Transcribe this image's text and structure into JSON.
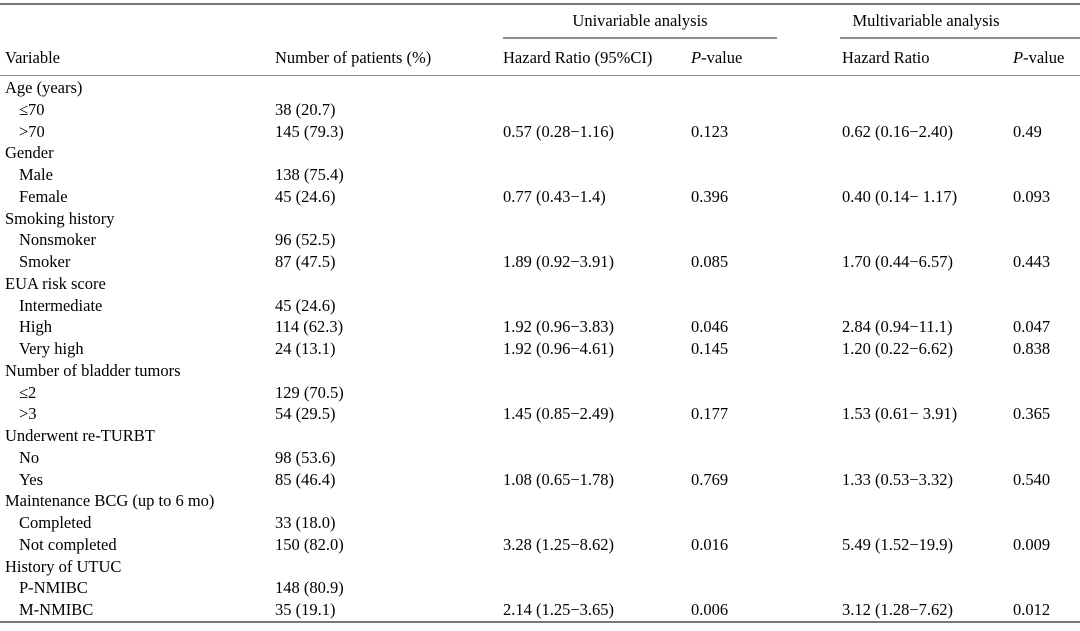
{
  "table": {
    "group_headers": {
      "univariable": "Univariable analysis",
      "multivariable": "Multivariable analysis"
    },
    "column_headers": {
      "variable": "Variable",
      "n_patients": "Number of patients (%)",
      "uni_hr": "Hazard Ratio (95%CI)",
      "multi_hr": "Hazard Ratio",
      "p_italic": "P",
      "p_rest": "-value"
    },
    "rows": [
      {
        "label": "Age (years)",
        "indent": false,
        "n": "",
        "uni_hr": "",
        "uni_p": "",
        "multi_hr": "",
        "multi_p": ""
      },
      {
        "label": "≤70",
        "indent": true,
        "n": "38 (20.7)",
        "uni_hr": "",
        "uni_p": "",
        "multi_hr": "",
        "multi_p": ""
      },
      {
        "label": ">70",
        "indent": true,
        "n": "145 (79.3)",
        "uni_hr": "0.57 (0.28−1.16)",
        "uni_p": "0.123",
        "multi_hr": "0.62 (0.16−2.40)",
        "multi_p": "0.49"
      },
      {
        "label": "Gender",
        "indent": false,
        "n": "",
        "uni_hr": "",
        "uni_p": "",
        "multi_hr": "",
        "multi_p": ""
      },
      {
        "label": "Male",
        "indent": true,
        "n": "138 (75.4)",
        "uni_hr": "",
        "uni_p": "",
        "multi_hr": "",
        "multi_p": ""
      },
      {
        "label": "Female",
        "indent": true,
        "n": "45 (24.6)",
        "uni_hr": "0.77 (0.43−1.4)",
        "uni_p": "0.396",
        "multi_hr": "0.40 (0.14− 1.17)",
        "multi_p": "0.093"
      },
      {
        "label": "Smoking history",
        "indent": false,
        "n": "",
        "uni_hr": "",
        "uni_p": "",
        "multi_hr": "",
        "multi_p": ""
      },
      {
        "label": "Nonsmoker",
        "indent": true,
        "n": "96 (52.5)",
        "uni_hr": "",
        "uni_p": "",
        "multi_hr": "",
        "multi_p": ""
      },
      {
        "label": "Smoker",
        "indent": true,
        "n": "87 (47.5)",
        "uni_hr": "1.89 (0.92−3.91)",
        "uni_p": "0.085",
        "multi_hr": "1.70 (0.44−6.57)",
        "multi_p": "0.443"
      },
      {
        "label": "EUA risk score",
        "indent": false,
        "n": "",
        "uni_hr": "",
        "uni_p": "",
        "multi_hr": "",
        "multi_p": ""
      },
      {
        "label": "Intermediate",
        "indent": true,
        "n": "45 (24.6)",
        "uni_hr": "",
        "uni_p": "",
        "multi_hr": "",
        "multi_p": ""
      },
      {
        "label": "High",
        "indent": true,
        "n": "114 (62.3)",
        "uni_hr": "1.92 (0.96−3.83)",
        "uni_p": "0.046",
        "multi_hr": "2.84 (0.94−11.1)",
        "multi_p": "0.047"
      },
      {
        "label": "Very high",
        "indent": true,
        "n": "24 (13.1)",
        "uni_hr": "1.92 (0.96−4.61)",
        "uni_p": "0.145",
        "multi_hr": "1.20 (0.22−6.62)",
        "multi_p": "0.838"
      },
      {
        "label": "Number of bladder tumors",
        "indent": false,
        "n": "",
        "uni_hr": "",
        "uni_p": "",
        "multi_hr": "",
        "multi_p": ""
      },
      {
        "label": "≤2",
        "indent": true,
        "n": "129 (70.5)",
        "uni_hr": "",
        "uni_p": "",
        "multi_hr": "",
        "multi_p": ""
      },
      {
        "label": ">3",
        "indent": true,
        "n": "54 (29.5)",
        "uni_hr": "1.45 (0.85−2.49)",
        "uni_p": "0.177",
        "multi_hr": "1.53 (0.61− 3.91)",
        "multi_p": "0.365"
      },
      {
        "label": "Underwent re-TURBT",
        "indent": false,
        "n": "",
        "uni_hr": "",
        "uni_p": "",
        "multi_hr": "",
        "multi_p": ""
      },
      {
        "label": "No",
        "indent": true,
        "n": "98 (53.6)",
        "uni_hr": "",
        "uni_p": "",
        "multi_hr": "",
        "multi_p": ""
      },
      {
        "label": "Yes",
        "indent": true,
        "n": "85 (46.4)",
        "uni_hr": "1.08 (0.65−1.78)",
        "uni_p": "0.769",
        "multi_hr": "1.33 (0.53−3.32)",
        "multi_p": "0.540"
      },
      {
        "label": "Maintenance BCG (up to 6 mo)",
        "indent": false,
        "n": "",
        "uni_hr": "",
        "uni_p": "",
        "multi_hr": "",
        "multi_p": ""
      },
      {
        "label": "Completed",
        "indent": true,
        "n": "33 (18.0)",
        "uni_hr": "",
        "uni_p": "",
        "multi_hr": "",
        "multi_p": ""
      },
      {
        "label": "Not completed",
        "indent": true,
        "n": "150 (82.0)",
        "uni_hr": "3.28 (1.25−8.62)",
        "uni_p": "0.016",
        "multi_hr": "5.49 (1.52−19.9)",
        "multi_p": "0.009"
      },
      {
        "label": "History of UTUC",
        "indent": false,
        "n": "",
        "uni_hr": "",
        "uni_p": "",
        "multi_hr": "",
        "multi_p": ""
      },
      {
        "label": "P-NMIBC",
        "indent": true,
        "n": "148 (80.9)",
        "uni_hr": "",
        "uni_p": "",
        "multi_hr": "",
        "multi_p": ""
      },
      {
        "label": "M-NMIBC",
        "indent": true,
        "n": "35 (19.1)",
        "uni_hr": "2.14 (1.25−3.65)",
        "uni_p": "0.006",
        "multi_hr": "3.12 (1.28−7.62)",
        "multi_p": "0.012"
      }
    ]
  },
  "colors": {
    "rule": "#8c8c8c",
    "heavy_rule": "#787878",
    "text": "#000000",
    "background": "#ffffff"
  }
}
